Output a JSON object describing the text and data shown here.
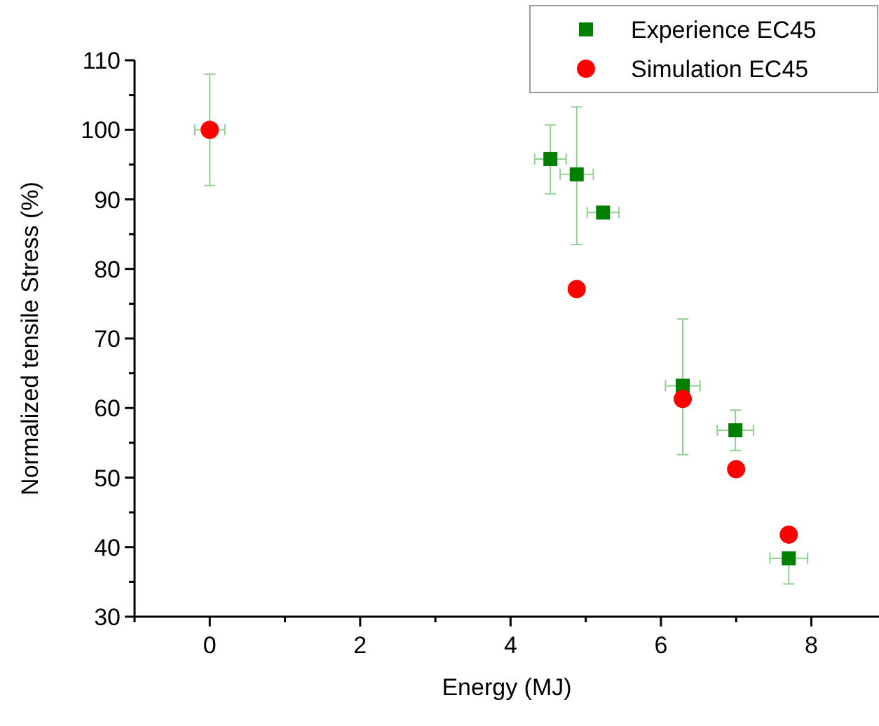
{
  "chart_data": {
    "type": "scatter",
    "xlabel": "Energy (MJ)",
    "ylabel": "Normalized tensile Stress (%)",
    "xlim": [
      -1,
      8.9
    ],
    "ylim": [
      30,
      110
    ],
    "xticks": [
      {
        "value": -1,
        "label": null
      },
      0,
      {
        "value": 1,
        "label": null
      },
      2,
      {
        "value": 3,
        "label": null
      },
      4,
      {
        "value": 5,
        "label": null
      },
      6,
      {
        "value": 7,
        "label": null
      },
      8
    ],
    "yticks": [
      30,
      40,
      50,
      60,
      70,
      80,
      90,
      100,
      110
    ],
    "grid": false,
    "legend": "top right",
    "series": [
      {
        "name": "Experience EC45",
        "color": "#007f00",
        "marker": "square",
        "x": [
          4.53,
          4.88,
          5.23,
          6.29,
          6.99,
          7.7
        ],
        "values": [
          95.8,
          93.6,
          88.1,
          63.2,
          56.8,
          38.4
        ],
        "errors": [
          [
            90.8,
            100.7
          ],
          [
            83.5,
            103.3
          ],
          null,
          [
            53.3,
            72.8
          ],
          [
            53.9,
            59.7
          ],
          [
            34.7,
            38.4
          ]
        ],
        "xerrors": [
          0.21,
          0.22,
          0.21,
          0.23,
          0.24,
          0.25
        ]
      },
      {
        "name": "Simulation EC45",
        "color": "#ff0000",
        "marker": "circle",
        "x": [
          0,
          4.88,
          6.29,
          7.0,
          7.7
        ],
        "values": [
          100,
          77.1,
          61.3,
          51.2,
          41.8
        ],
        "errors": [
          [
            92,
            108
          ],
          null,
          null,
          null,
          null
        ],
        "xerrors": [
          0.2,
          null,
          null,
          null,
          null
        ]
      }
    ]
  }
}
